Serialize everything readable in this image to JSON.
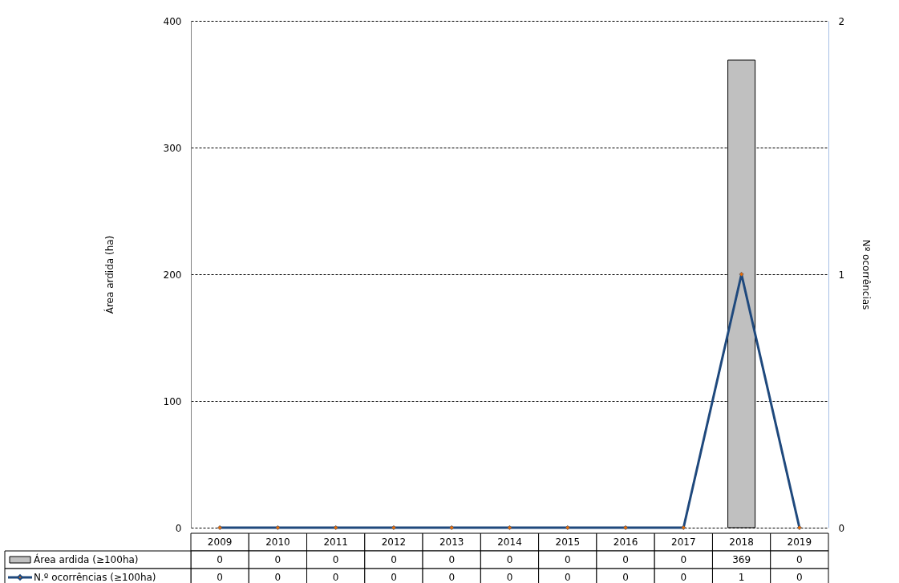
{
  "chart_data": {
    "type": "bar",
    "categories": [
      "2009",
      "2010",
      "2011",
      "2012",
      "2013",
      "2014",
      "2015",
      "2016",
      "2017",
      "2018",
      "2019"
    ],
    "series": [
      {
        "name": "Área ardida (≥100ha)",
        "color": "#c0c0c0",
        "values": [
          0,
          0,
          0,
          0,
          0,
          0,
          0,
          0,
          0,
          369,
          0
        ]
      },
      {
        "name": "N.º ocorrências (≥100ha)",
        "type": "line",
        "axis": "y2",
        "color": "#1f497d",
        "values": [
          0,
          0,
          0,
          0,
          0,
          0,
          0,
          0,
          0,
          1,
          0
        ]
      }
    ],
    "ylabel": "Área ardida (ha)",
    "y2label": "Nº ocorrências",
    "ylim": [
      0,
      400
    ],
    "yticks": [
      0,
      100,
      200,
      300,
      400
    ],
    "y2lim": [
      0,
      2
    ],
    "y2ticks": [
      0,
      1,
      2
    ],
    "grid": "y",
    "legend": "bottom",
    "data_labels": true,
    "marker": "diamond"
  }
}
